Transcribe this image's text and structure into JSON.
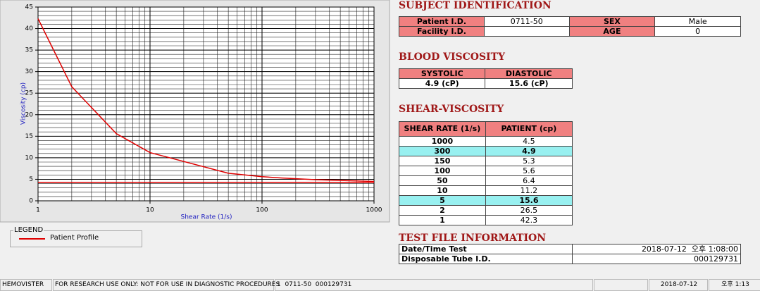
{
  "status_bar": [
    "HEMOVISTER",
    "FOR RESEARCH USE ONLY: NOT FOR USE IN DIAGNOSTIC PROCEDURES",
    "1  0711-50  000129731",
    "2018-07-12",
    "오후 1:13"
  ],
  "subject": {
    "title": "SUBJECT IDENTIFICATION",
    "patient_id_label": "Patient I.D.",
    "patient_id": "0711-50",
    "facility_id_label": "Facility I.D.",
    "sex_label": "SEX",
    "sex": "Male",
    "age_label": "AGE",
    "age": 0
  },
  "blood": {
    "title": "BLOOD VISCOSITY",
    "headers": [
      "SYSTOLIC",
      "DIASTOLIC"
    ],
    "values": [
      "4.9 (cP)",
      "15.6 (cP)"
    ]
  },
  "shear": {
    "title": "SHEAR-VISCOSITY",
    "headers": [
      "SHEAR RATE (1/s)",
      "PATIENT (cp)"
    ],
    "highlighted": [
      1,
      6
    ]
  },
  "test_file": {
    "title": "TEST FILE INFORMATION",
    "rows": [
      [
        "Date/Time Test",
        "2018-07-12  오후 1:08:00"
      ],
      [
        "Disposable Tube I.D.",
        "000129731"
      ]
    ]
  },
  "legend_title": "LEGEND",
  "chart_data": {
    "type": "line",
    "x_label": "Shear Rate (1/s)",
    "y_label": "Viscosity (cp)",
    "x": [
      1000,
      300,
      150,
      100,
      50,
      10,
      5,
      2,
      1
    ],
    "series": [
      {
        "name": "Patient Profile",
        "color": "#e00000",
        "values": [
          4.5,
          4.9,
          5.3,
          5.6,
          6.4,
          11.2,
          15.6,
          26.5,
          42.3
        ]
      },
      {
        "color": "#e00000",
        "values": [
          4.3,
          4.3,
          4.3,
          4.3,
          4.3,
          4.3,
          4.3,
          4.3,
          4.3
        ]
      }
    ],
    "xlim": [
      1,
      1000
    ],
    "ylim": [
      0,
      45
    ],
    "xticks": [
      1,
      10,
      100,
      1000
    ],
    "yticks": [
      0,
      5,
      10,
      15,
      20,
      25,
      30,
      35,
      40,
      45
    ],
    "x_log": true,
    "grid": true
  }
}
